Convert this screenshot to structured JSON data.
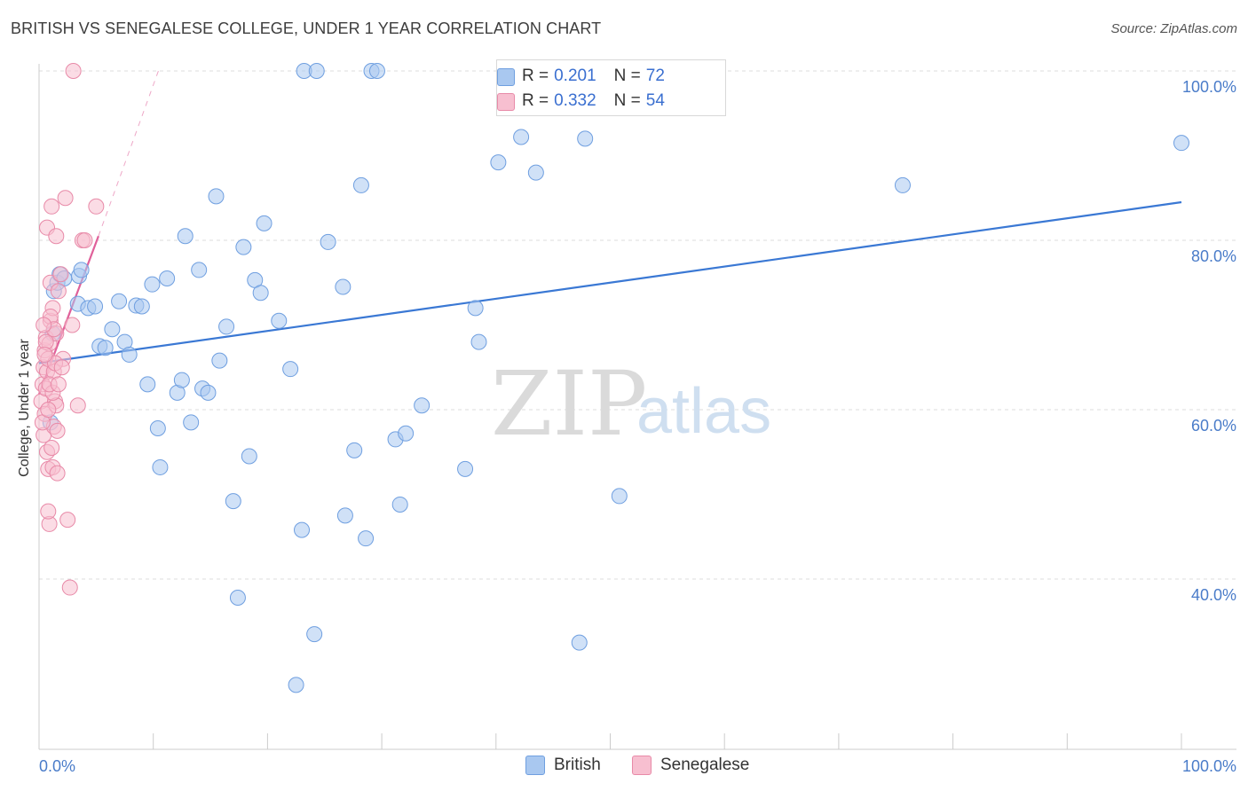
{
  "title": "BRITISH VS SENEGALESE COLLEGE, UNDER 1 YEAR CORRELATION CHART",
  "source": "Source: ZipAtlas.com",
  "watermark": {
    "zip": "ZIP",
    "atlas": "atlas"
  },
  "stats": [
    {
      "r_label": "R = ",
      "r_value": "0.201",
      "n_label": "N = ",
      "n_value": "72",
      "color": "#a9c8f0",
      "border": "#6f9fe0"
    },
    {
      "r_label": "R = ",
      "r_value": "0.332",
      "n_label": "N = ",
      "n_value": "54",
      "color": "#f7bfd0",
      "border": "#e88aa8"
    }
  ],
  "legend": [
    {
      "label": "British",
      "color": "#a9c8f0",
      "border": "#6f9fe0"
    },
    {
      "label": "Senegalese",
      "color": "#f7bfd0",
      "border": "#e88aa8"
    }
  ],
  "chart_data": {
    "type": "scatter",
    "title": "BRITISH VS SENEGALESE COLLEGE, UNDER 1 YEAR CORRELATION CHART",
    "xlabel": "",
    "ylabel": "College, Under 1 year",
    "xlim": [
      0,
      100
    ],
    "ylim": [
      20,
      104
    ],
    "x_tick_labels": [
      "0.0%",
      "100.0%"
    ],
    "y_ticks": [
      40,
      60,
      80,
      100
    ],
    "y_tick_labels": [
      "40.0%",
      "60.0%",
      "80.0%",
      "100.0%"
    ],
    "grid": true,
    "series": [
      {
        "name": "British",
        "color": "#a9c8f0",
        "border": "#6f9fe0",
        "trend": {
          "x0": 0,
          "y0": 65.5,
          "x1": 100,
          "y1": 84.5,
          "color": "#3a78d4"
        },
        "points": [
          [
            1.0,
            58.5
          ],
          [
            1.2,
            69.0
          ],
          [
            1.3,
            74.0
          ],
          [
            1.6,
            75.0
          ],
          [
            1.8,
            76.0
          ],
          [
            2.2,
            75.5
          ],
          [
            3.5,
            75.8
          ],
          [
            3.7,
            76.5
          ],
          [
            3.4,
            72.5
          ],
          [
            4.3,
            72.0
          ],
          [
            4.9,
            72.2
          ],
          [
            5.3,
            67.5
          ],
          [
            5.8,
            67.3
          ],
          [
            6.4,
            69.5
          ],
          [
            7.0,
            72.8
          ],
          [
            7.5,
            68.0
          ],
          [
            7.9,
            66.5
          ],
          [
            8.5,
            72.3
          ],
          [
            9.0,
            72.2
          ],
          [
            9.5,
            63.0
          ],
          [
            9.9,
            74.8
          ],
          [
            10.4,
            57.8
          ],
          [
            10.6,
            53.2
          ],
          [
            11.2,
            75.5
          ],
          [
            12.1,
            62.0
          ],
          [
            12.5,
            63.5
          ],
          [
            12.8,
            80.5
          ],
          [
            13.3,
            58.5
          ],
          [
            14.0,
            76.5
          ],
          [
            14.3,
            62.5
          ],
          [
            14.8,
            62.0
          ],
          [
            15.5,
            85.2
          ],
          [
            15.8,
            65.8
          ],
          [
            16.4,
            69.8
          ],
          [
            17.0,
            49.2
          ],
          [
            17.4,
            37.8
          ],
          [
            17.9,
            79.2
          ],
          [
            18.4,
            54.5
          ],
          [
            18.9,
            75.3
          ],
          [
            19.4,
            73.8
          ],
          [
            19.7,
            82.0
          ],
          [
            21.0,
            70.5
          ],
          [
            22.0,
            64.8
          ],
          [
            22.5,
            27.5
          ],
          [
            23.0,
            45.8
          ],
          [
            23.2,
            100.0
          ],
          [
            24.1,
            33.5
          ],
          [
            24.3,
            100.0
          ],
          [
            25.3,
            79.8
          ],
          [
            26.6,
            74.5
          ],
          [
            26.8,
            47.5
          ],
          [
            27.6,
            55.2
          ],
          [
            28.2,
            86.5
          ],
          [
            28.6,
            44.8
          ],
          [
            29.1,
            100.0
          ],
          [
            29.6,
            100.0
          ],
          [
            31.2,
            56.5
          ],
          [
            32.1,
            57.2
          ],
          [
            31.6,
            48.8
          ],
          [
            33.5,
            60.5
          ],
          [
            37.3,
            53.0
          ],
          [
            38.2,
            72.0
          ],
          [
            38.5,
            68.0
          ],
          [
            40.2,
            89.2
          ],
          [
            42.2,
            92.2
          ],
          [
            43.5,
            88.0
          ],
          [
            47.3,
            32.5
          ],
          [
            47.8,
            92.0
          ],
          [
            50.1,
            100.0
          ],
          [
            50.8,
            49.8
          ],
          [
            75.6,
            86.5
          ],
          [
            100.0,
            91.5
          ]
        ]
      },
      {
        "name": "Senegalese",
        "color": "#f7bfd0",
        "border": "#e88aa8",
        "trend": {
          "x0": 0,
          "y0": 61.8,
          "x1": 5.2,
          "y1": 80.5,
          "color": "#e0609a"
        },
        "trend_ext": {
          "x0": 5.2,
          "y0": 80.5,
          "x1": 10.5,
          "y1": 100.2
        },
        "points": [
          [
            0.2,
            61.0
          ],
          [
            0.3,
            63.0
          ],
          [
            0.4,
            65.0
          ],
          [
            0.5,
            67.0
          ],
          [
            0.6,
            68.5
          ],
          [
            0.4,
            57.0
          ],
          [
            0.5,
            59.5
          ],
          [
            0.6,
            62.5
          ],
          [
            0.7,
            64.5
          ],
          [
            0.8,
            66.0
          ],
          [
            0.9,
            67.8
          ],
          [
            1.0,
            70.5
          ],
          [
            0.7,
            55.0
          ],
          [
            0.8,
            53.0
          ],
          [
            0.9,
            46.5
          ],
          [
            0.8,
            48.0
          ],
          [
            0.7,
            81.5
          ],
          [
            1.1,
            84.0
          ],
          [
            1.0,
            75.0
          ],
          [
            1.2,
            72.0
          ],
          [
            1.3,
            64.5
          ],
          [
            1.4,
            61.0
          ],
          [
            1.5,
            60.5
          ],
          [
            1.2,
            53.2
          ],
          [
            1.6,
            52.5
          ],
          [
            1.3,
            58.0
          ],
          [
            1.5,
            69.0
          ],
          [
            1.7,
            74.0
          ],
          [
            1.9,
            76.0
          ],
          [
            2.1,
            66.0
          ],
          [
            2.3,
            85.0
          ],
          [
            2.5,
            47.0
          ],
          [
            2.7,
            39.0
          ],
          [
            2.9,
            70.0
          ],
          [
            3.0,
            100.0
          ],
          [
            3.4,
            60.5
          ],
          [
            3.8,
            80.0
          ],
          [
            4.0,
            80.0
          ],
          [
            5.0,
            84.0
          ],
          [
            1.5,
            80.5
          ],
          [
            1.2,
            62.0
          ],
          [
            0.9,
            63.0
          ],
          [
            1.0,
            71.0
          ],
          [
            0.6,
            68.0
          ],
          [
            1.4,
            65.5
          ],
          [
            1.1,
            55.5
          ],
          [
            0.3,
            58.5
          ],
          [
            0.5,
            66.5
          ],
          [
            0.8,
            60.0
          ],
          [
            1.7,
            63.0
          ],
          [
            1.3,
            69.5
          ],
          [
            1.6,
            57.5
          ],
          [
            2.0,
            65.0
          ],
          [
            0.4,
            70.0
          ]
        ]
      }
    ]
  }
}
